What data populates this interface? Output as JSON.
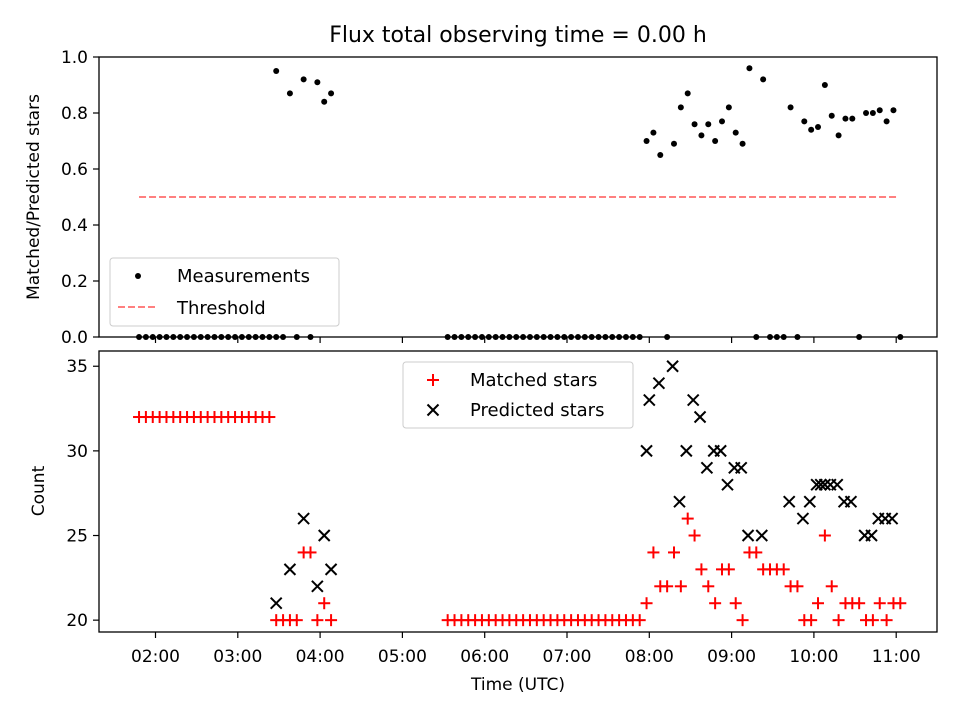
{
  "chart_data": [
    {
      "type": "scatter",
      "title": "Flux total observing time = 0.00 h",
      "xlabel": "",
      "ylabel": "Matched/Predicted stars",
      "ylim": [
        0,
        1.0
      ],
      "yticks": [
        "0.0",
        "0.2",
        "0.4",
        "0.6",
        "0.8",
        "1.0"
      ],
      "legend_position": "lower-left",
      "series": [
        {
          "name": "Measurements",
          "marker": "dot",
          "color": "#000000",
          "points": [
            [
              "01:48",
              0
            ],
            [
              "01:53",
              0
            ],
            [
              "01:58",
              0
            ],
            [
              "02:03",
              0
            ],
            [
              "02:08",
              0
            ],
            [
              "02:13",
              0
            ],
            [
              "02:18",
              0
            ],
            [
              "02:23",
              0
            ],
            [
              "02:28",
              0
            ],
            [
              "02:33",
              0
            ],
            [
              "02:38",
              0
            ],
            [
              "02:43",
              0
            ],
            [
              "02:48",
              0
            ],
            [
              "02:53",
              0
            ],
            [
              "02:58",
              0
            ],
            [
              "03:03",
              0
            ],
            [
              "03:08",
              0
            ],
            [
              "03:13",
              0
            ],
            [
              "03:18",
              0
            ],
            [
              "03:23",
              0
            ],
            [
              "03:28",
              0
            ],
            [
              "03:28",
              0.95
            ],
            [
              "03:38",
              0.87
            ],
            [
              "03:48",
              0.92
            ],
            [
              "03:58",
              0.91
            ],
            [
              "04:03",
              0.84
            ],
            [
              "04:08",
              0.87
            ],
            [
              "03:33",
              0
            ],
            [
              "03:43",
              0
            ],
            [
              "03:53",
              0
            ],
            [
              "05:33",
              0
            ],
            [
              "05:38",
              0
            ],
            [
              "05:43",
              0
            ],
            [
              "05:48",
              0
            ],
            [
              "05:53",
              0
            ],
            [
              "05:58",
              0
            ],
            [
              "06:03",
              0
            ],
            [
              "06:08",
              0
            ],
            [
              "06:13",
              0
            ],
            [
              "06:18",
              0
            ],
            [
              "06:23",
              0
            ],
            [
              "06:28",
              0
            ],
            [
              "06:33",
              0
            ],
            [
              "06:38",
              0
            ],
            [
              "06:43",
              0
            ],
            [
              "06:48",
              0
            ],
            [
              "06:53",
              0
            ],
            [
              "06:58",
              0
            ],
            [
              "07:03",
              0
            ],
            [
              "07:08",
              0
            ],
            [
              "07:13",
              0
            ],
            [
              "07:18",
              0
            ],
            [
              "07:23",
              0
            ],
            [
              "07:28",
              0
            ],
            [
              "07:33",
              0
            ],
            [
              "07:38",
              0
            ],
            [
              "07:43",
              0
            ],
            [
              "07:48",
              0
            ],
            [
              "07:53",
              0
            ],
            [
              "07:58",
              0.7
            ],
            [
              "08:03",
              0.73
            ],
            [
              "08:08",
              0.65
            ],
            [
              "08:13",
              0
            ],
            [
              "08:18",
              0.69
            ],
            [
              "08:23",
              0.82
            ],
            [
              "08:28",
              0.87
            ],
            [
              "08:33",
              0.76
            ],
            [
              "08:38",
              0.72
            ],
            [
              "08:43",
              0.76
            ],
            [
              "08:48",
              0.7
            ],
            [
              "08:53",
              0.77
            ],
            [
              "08:58",
              0.82
            ],
            [
              "09:03",
              0.73
            ],
            [
              "09:08",
              0.69
            ],
            [
              "09:13",
              0.96
            ],
            [
              "09:18",
              0
            ],
            [
              "09:23",
              0.92
            ],
            [
              "09:28",
              0
            ],
            [
              "09:33",
              0
            ],
            [
              "09:38",
              0
            ],
            [
              "09:43",
              0.82
            ],
            [
              "09:48",
              0
            ],
            [
              "09:53",
              0.77
            ],
            [
              "09:58",
              0.74
            ],
            [
              "10:03",
              0.75
            ],
            [
              "10:08",
              0.9
            ],
            [
              "10:13",
              0.79
            ],
            [
              "10:18",
              0.72
            ],
            [
              "10:23",
              0.78
            ],
            [
              "10:28",
              0.78
            ],
            [
              "10:33",
              0
            ],
            [
              "10:38",
              0.8
            ],
            [
              "10:43",
              0.8
            ],
            [
              "10:48",
              0.81
            ],
            [
              "10:53",
              0.77
            ],
            [
              "10:58",
              0.81
            ],
            [
              "11:03",
              0
            ]
          ]
        },
        {
          "name": "Threshold",
          "marker": "dashed-line",
          "color": "#ff8080",
          "points": [
            [
              "01:48",
              0.5
            ],
            [
              "11:00",
              0.5
            ]
          ]
        }
      ]
    },
    {
      "type": "scatter",
      "title": "",
      "xlabel": "Time (UTC)",
      "ylabel": "Count",
      "ylim": [
        19.3,
        35.9
      ],
      "yticks": [
        "20",
        "25",
        "30",
        "35"
      ],
      "xticks": [
        "02:00",
        "03:00",
        "04:00",
        "05:00",
        "06:00",
        "07:00",
        "08:00",
        "09:00",
        "10:00",
        "11:00"
      ],
      "legend_position": "upper-center",
      "series": [
        {
          "name": "Matched stars",
          "marker": "plus",
          "color": "#ff0000",
          "points": [
            [
              "01:48",
              32
            ],
            [
              "01:53",
              32
            ],
            [
              "01:58",
              32
            ],
            [
              "02:03",
              32
            ],
            [
              "02:08",
              32
            ],
            [
              "02:13",
              32
            ],
            [
              "02:18",
              32
            ],
            [
              "02:23",
              32
            ],
            [
              "02:28",
              32
            ],
            [
              "02:33",
              32
            ],
            [
              "02:38",
              32
            ],
            [
              "02:43",
              32
            ],
            [
              "02:48",
              32
            ],
            [
              "02:53",
              32
            ],
            [
              "02:58",
              32
            ],
            [
              "03:03",
              32
            ],
            [
              "03:08",
              32
            ],
            [
              "03:13",
              32
            ],
            [
              "03:18",
              32
            ],
            [
              "03:23",
              32
            ],
            [
              "03:28",
              20
            ],
            [
              "03:33",
              20
            ],
            [
              "03:38",
              20
            ],
            [
              "03:43",
              20
            ],
            [
              "03:48",
              24
            ],
            [
              "03:53",
              24
            ],
            [
              "03:58",
              20
            ],
            [
              "04:03",
              21
            ],
            [
              "04:08",
              20
            ],
            [
              "05:33",
              20
            ],
            [
              "05:38",
              20
            ],
            [
              "05:43",
              20
            ],
            [
              "05:48",
              20
            ],
            [
              "05:53",
              20
            ],
            [
              "05:58",
              20
            ],
            [
              "06:03",
              20
            ],
            [
              "06:08",
              20
            ],
            [
              "06:13",
              20
            ],
            [
              "06:18",
              20
            ],
            [
              "06:23",
              20
            ],
            [
              "06:28",
              20
            ],
            [
              "06:33",
              20
            ],
            [
              "06:38",
              20
            ],
            [
              "06:43",
              20
            ],
            [
              "06:48",
              20
            ],
            [
              "06:53",
              20
            ],
            [
              "06:58",
              20
            ],
            [
              "07:03",
              20
            ],
            [
              "07:08",
              20
            ],
            [
              "07:13",
              20
            ],
            [
              "07:18",
              20
            ],
            [
              "07:23",
              20
            ],
            [
              "07:28",
              20
            ],
            [
              "07:33",
              20
            ],
            [
              "07:38",
              20
            ],
            [
              "07:43",
              20
            ],
            [
              "07:48",
              20
            ],
            [
              "07:53",
              20
            ],
            [
              "07:58",
              21
            ],
            [
              "08:03",
              24
            ],
            [
              "08:08",
              22
            ],
            [
              "08:13",
              22
            ],
            [
              "08:18",
              24
            ],
            [
              "08:23",
              22
            ],
            [
              "08:28",
              26
            ],
            [
              "08:33",
              25
            ],
            [
              "08:38",
              23
            ],
            [
              "08:43",
              22
            ],
            [
              "08:48",
              21
            ],
            [
              "08:53",
              23
            ],
            [
              "08:58",
              23
            ],
            [
              "09:03",
              21
            ],
            [
              "09:08",
              20
            ],
            [
              "09:13",
              24
            ],
            [
              "09:18",
              24
            ],
            [
              "09:23",
              23
            ],
            [
              "09:28",
              23
            ],
            [
              "09:33",
              23
            ],
            [
              "09:38",
              23
            ],
            [
              "09:43",
              22
            ],
            [
              "09:48",
              22
            ],
            [
              "09:53",
              20
            ],
            [
              "09:58",
              20
            ],
            [
              "10:03",
              21
            ],
            [
              "10:08",
              25
            ],
            [
              "10:13",
              22
            ],
            [
              "10:18",
              20
            ],
            [
              "10:23",
              21
            ],
            [
              "10:28",
              21
            ],
            [
              "10:33",
              21
            ],
            [
              "10:38",
              20
            ],
            [
              "10:43",
              20
            ],
            [
              "10:48",
              21
            ],
            [
              "10:53",
              20
            ],
            [
              "10:58",
              21
            ],
            [
              "11:03",
              21
            ]
          ]
        },
        {
          "name": "Predicted stars",
          "marker": "x",
          "color": "#000000",
          "points": [
            [
              "03:28",
              21
            ],
            [
              "03:38",
              23
            ],
            [
              "03:48",
              26
            ],
            [
              "03:58",
              22
            ],
            [
              "04:03",
              25
            ],
            [
              "04:08",
              23
            ],
            [
              "07:58",
              30
            ],
            [
              "08:00",
              33
            ],
            [
              "08:07",
              34
            ],
            [
              "08:17",
              35
            ],
            [
              "08:22",
              27
            ],
            [
              "08:27",
              30
            ],
            [
              "08:32",
              33
            ],
            [
              "08:37",
              32
            ],
            [
              "08:42",
              29
            ],
            [
              "08:47",
              30
            ],
            [
              "08:52",
              30
            ],
            [
              "08:57",
              28
            ],
            [
              "09:02",
              29
            ],
            [
              "09:07",
              29
            ],
            [
              "09:12",
              25
            ],
            [
              "09:22",
              25
            ],
            [
              "09:42",
              27
            ],
            [
              "09:52",
              26
            ],
            [
              "09:57",
              27
            ],
            [
              "10:02",
              28
            ],
            [
              "10:05",
              28
            ],
            [
              "10:08",
              28
            ],
            [
              "10:12",
              28
            ],
            [
              "10:17",
              28
            ],
            [
              "10:22",
              27
            ],
            [
              "10:27",
              27
            ],
            [
              "10:37",
              25
            ],
            [
              "10:42",
              25
            ],
            [
              "10:47",
              26
            ],
            [
              "10:52",
              26
            ],
            [
              "10:57",
              26
            ]
          ]
        }
      ]
    }
  ]
}
